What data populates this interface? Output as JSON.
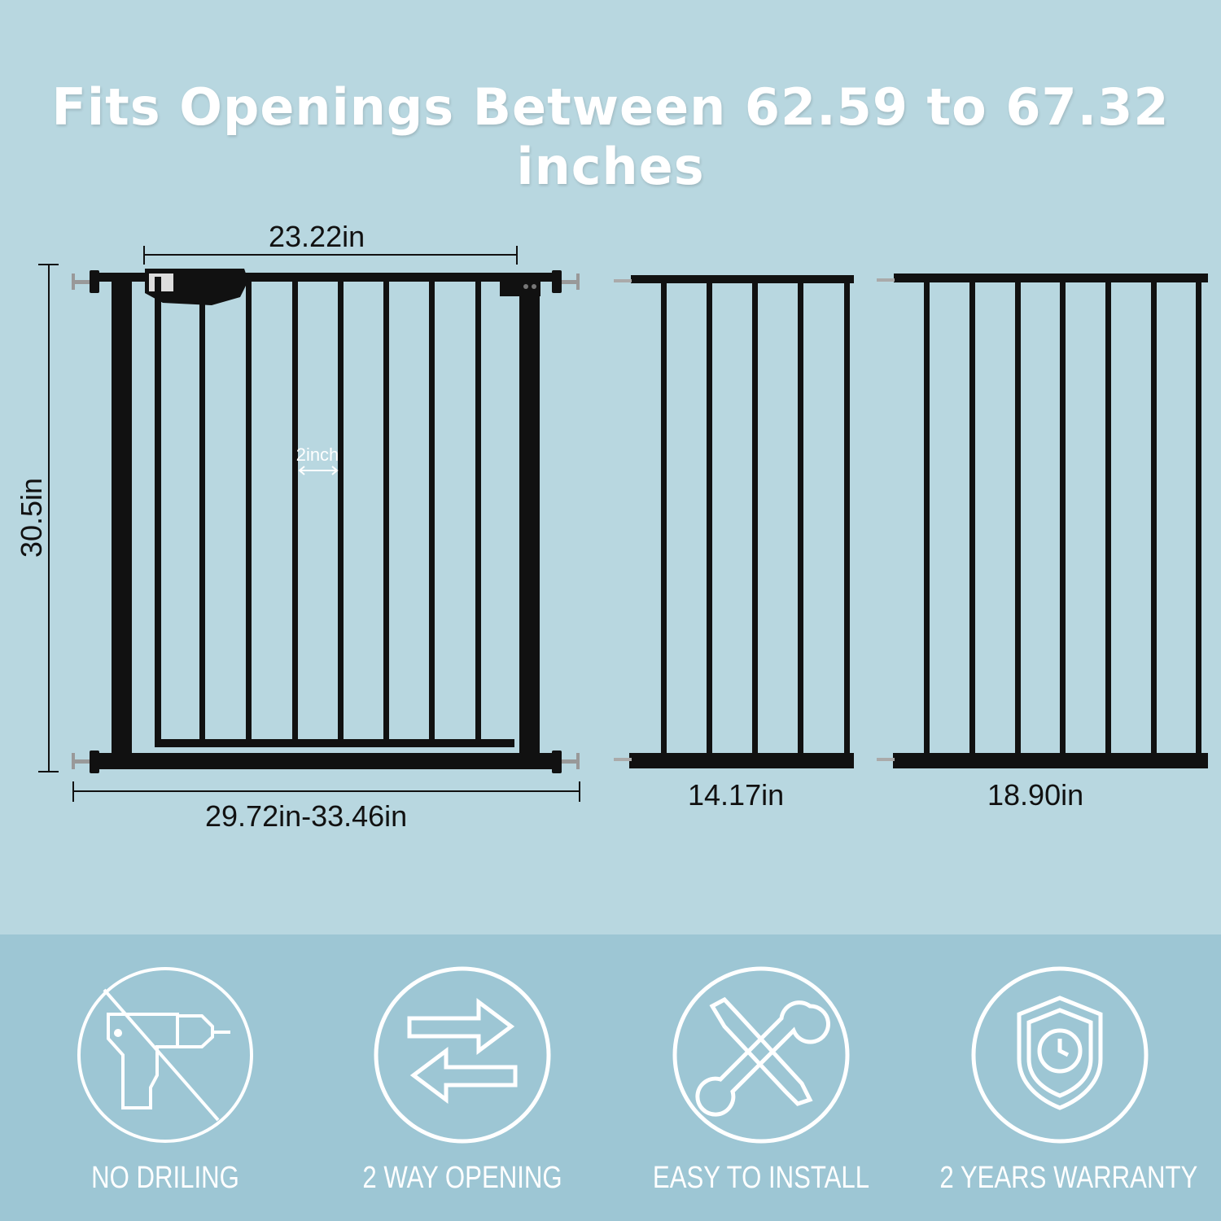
{
  "title": "Fits Openings Between 62.59 to 67.32 inches",
  "gate": {
    "width_label": "23.22in",
    "height_label": "30.5in",
    "range_label": "29.72in-33.46in",
    "spacing_label": "2inch"
  },
  "extensions": [
    {
      "label": "14.17in"
    },
    {
      "label": "18.90in"
    }
  ],
  "features": [
    {
      "label": "NO DRILING",
      "icon": "no-drill-icon"
    },
    {
      "label": "2 WAY OPENING",
      "icon": "two-way-arrows-icon"
    },
    {
      "label": "EASY TO INSTALL",
      "icon": "tools-icon"
    },
    {
      "label": "2 YEARS WARRANTY",
      "icon": "shield-clock-icon"
    }
  ],
  "colors": {
    "background": "#b8d7e0",
    "band": "#9dc6d4",
    "gate": "#111111",
    "text_light": "#ffffff"
  }
}
